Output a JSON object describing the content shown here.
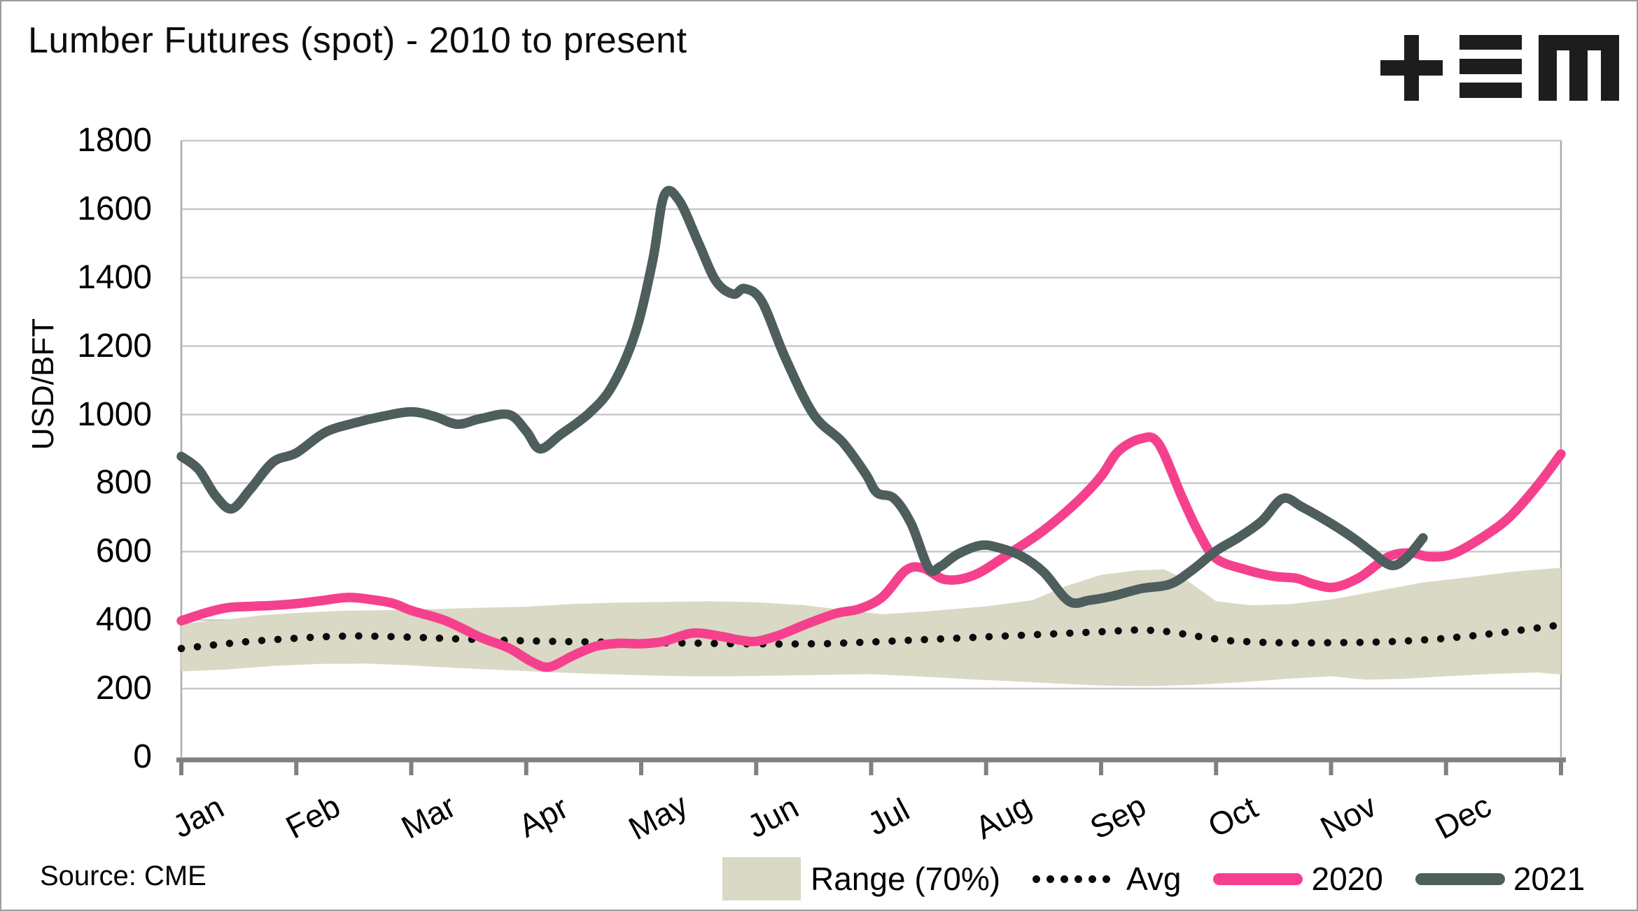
{
  "title": "Lumber Futures (spot) - 2010 to present",
  "source": "Source: CME",
  "logo_name": "plus-triple-bar-m-logo",
  "colors": {
    "pink": "#f5418d",
    "slate": "#4d5e5c",
    "band": "#d9d9c5",
    "avg_dots": "#0c0c0c",
    "grid": "#c9c9c9",
    "plot_border": "#ababab",
    "axis": "#808080",
    "logo": "#1d1d1b"
  },
  "legend": {
    "range_label": "Range (70%)",
    "avg_label": "Avg",
    "s2020_label": "2020",
    "s2021_label": "2021"
  },
  "chart_data": {
    "type": "line",
    "title": "Lumber Futures (spot) - 2010 to present",
    "xlabel": "",
    "ylabel": "USD/BFT",
    "ylim": [
      0,
      1800
    ],
    "y_ticks": [
      0,
      200,
      400,
      600,
      800,
      1000,
      1200,
      1400,
      1600,
      1800
    ],
    "months": [
      "Jan",
      "Feb",
      "Mar",
      "Apr",
      "May",
      "Jun",
      "Jul",
      "Aug",
      "Sep",
      "Oct",
      "Nov",
      "Dec"
    ],
    "grid": "horizontal-only",
    "legend_position": "bottom-right",
    "x_unit": "month index 0-12 (fraction of year)",
    "series": [
      {
        "name": "Range (70%)",
        "type": "band",
        "upper": [
          [
            0,
            390
          ],
          [
            0.35,
            400
          ],
          [
            0.7,
            414
          ],
          [
            1,
            421
          ],
          [
            1.4,
            427
          ],
          [
            1.8,
            429
          ],
          [
            2.2,
            432
          ],
          [
            2.6,
            436
          ],
          [
            3,
            439
          ],
          [
            3.4,
            447
          ],
          [
            3.8,
            451
          ],
          [
            4.2,
            453
          ],
          [
            4.6,
            455
          ],
          [
            5,
            452
          ],
          [
            5.4,
            444
          ],
          [
            5.8,
            428
          ],
          [
            6.1,
            417
          ],
          [
            6.5,
            426
          ],
          [
            7,
            440
          ],
          [
            7.4,
            458
          ],
          [
            7.7,
            500
          ],
          [
            8,
            532
          ],
          [
            8.3,
            545
          ],
          [
            8.55,
            548
          ],
          [
            8.75,
            515
          ],
          [
            9,
            455
          ],
          [
            9.3,
            443
          ],
          [
            9.65,
            447
          ],
          [
            10,
            460
          ],
          [
            10.4,
            485
          ],
          [
            10.8,
            510
          ],
          [
            11.2,
            525
          ],
          [
            11.6,
            542
          ],
          [
            12,
            553
          ]
        ],
        "lower": [
          [
            0,
            250
          ],
          [
            0.4,
            256
          ],
          [
            0.8,
            266
          ],
          [
            1.2,
            272
          ],
          [
            1.6,
            273
          ],
          [
            2,
            268
          ],
          [
            2.4,
            260
          ],
          [
            2.8,
            254
          ],
          [
            3.2,
            248
          ],
          [
            3.6,
            243
          ],
          [
            4,
            239
          ],
          [
            4.4,
            236
          ],
          [
            4.8,
            236
          ],
          [
            5.2,
            238
          ],
          [
            5.6,
            240
          ],
          [
            6,
            242
          ],
          [
            6.4,
            236
          ],
          [
            6.8,
            228
          ],
          [
            7.2,
            222
          ],
          [
            7.6,
            215
          ],
          [
            8,
            209
          ],
          [
            8.4,
            207
          ],
          [
            8.8,
            211
          ],
          [
            9.2,
            218
          ],
          [
            9.6,
            228
          ],
          [
            10,
            236
          ],
          [
            10.3,
            226
          ],
          [
            10.6,
            228
          ],
          [
            11,
            236
          ],
          [
            11.4,
            243
          ],
          [
            11.8,
            247
          ],
          [
            12,
            241
          ]
        ]
      },
      {
        "name": "Avg",
        "type": "dotted-line",
        "points": [
          [
            0,
            317
          ],
          [
            0.3,
            328
          ],
          [
            0.6,
            338
          ],
          [
            0.9,
            345
          ],
          [
            1.2,
            351
          ],
          [
            1.5,
            354
          ],
          [
            1.8,
            352
          ],
          [
            2.1,
            349
          ],
          [
            2.4,
            345
          ],
          [
            2.8,
            341
          ],
          [
            3.2,
            338
          ],
          [
            3.6,
            336
          ],
          [
            4,
            334
          ],
          [
            4.4,
            333
          ],
          [
            4.8,
            331
          ],
          [
            5.2,
            330
          ],
          [
            5.6,
            331
          ],
          [
            6,
            336
          ],
          [
            6.4,
            342
          ],
          [
            6.8,
            348
          ],
          [
            7.2,
            354
          ],
          [
            7.6,
            360
          ],
          [
            8,
            366
          ],
          [
            8.35,
            372
          ],
          [
            8.6,
            366
          ],
          [
            8.85,
            352
          ],
          [
            9.1,
            340
          ],
          [
            9.4,
            335
          ],
          [
            9.7,
            333
          ],
          [
            10,
            334
          ],
          [
            10.3,
            335
          ],
          [
            10.6,
            338
          ],
          [
            10.9,
            344
          ],
          [
            11.2,
            353
          ],
          [
            11.5,
            364
          ],
          [
            11.75,
            375
          ],
          [
            12,
            386
          ]
        ]
      },
      {
        "name": "2020",
        "type": "line",
        "points": [
          [
            0,
            398
          ],
          [
            0.2,
            420
          ],
          [
            0.4,
            436
          ],
          [
            0.6,
            440
          ],
          [
            0.8,
            443
          ],
          [
            1,
            448
          ],
          [
            1.2,
            456
          ],
          [
            1.45,
            466
          ],
          [
            1.65,
            460
          ],
          [
            1.85,
            448
          ],
          [
            2,
            428
          ],
          [
            2.3,
            398
          ],
          [
            2.6,
            350
          ],
          [
            2.85,
            318
          ],
          [
            3.05,
            278
          ],
          [
            3.2,
            263
          ],
          [
            3.4,
            295
          ],
          [
            3.6,
            323
          ],
          [
            3.8,
            332
          ],
          [
            4,
            331
          ],
          [
            4.2,
            338
          ],
          [
            4.45,
            362
          ],
          [
            4.7,
            352
          ],
          [
            4.85,
            342
          ],
          [
            5,
            338
          ],
          [
            5.2,
            356
          ],
          [
            5.45,
            390
          ],
          [
            5.7,
            420
          ],
          [
            5.9,
            433
          ],
          [
            6.1,
            468
          ],
          [
            6.3,
            545
          ],
          [
            6.45,
            552
          ],
          [
            6.65,
            518
          ],
          [
            6.9,
            532
          ],
          [
            7.2,
            594
          ],
          [
            7.5,
            662
          ],
          [
            7.8,
            748
          ],
          [
            8,
            820
          ],
          [
            8.15,
            893
          ],
          [
            8.35,
            930
          ],
          [
            8.5,
            915
          ],
          [
            8.7,
            762
          ],
          [
            8.85,
            655
          ],
          [
            9,
            580
          ],
          [
            9.25,
            548
          ],
          [
            9.5,
            528
          ],
          [
            9.7,
            522
          ],
          [
            9.85,
            505
          ],
          [
            10.03,
            496
          ],
          [
            10.25,
            525
          ],
          [
            10.5,
            585
          ],
          [
            10.7,
            596
          ],
          [
            10.85,
            585
          ],
          [
            11.05,
            592
          ],
          [
            11.3,
            638
          ],
          [
            11.55,
            700
          ],
          [
            11.8,
            795
          ],
          [
            12,
            885
          ]
        ]
      },
      {
        "name": "2021",
        "type": "line",
        "points": [
          [
            0,
            878
          ],
          [
            0.15,
            840
          ],
          [
            0.3,
            762
          ],
          [
            0.44,
            725
          ],
          [
            0.6,
            782
          ],
          [
            0.8,
            862
          ],
          [
            1,
            888
          ],
          [
            1.25,
            948
          ],
          [
            1.5,
            975
          ],
          [
            1.75,
            995
          ],
          [
            2,
            1008
          ],
          [
            2.2,
            995
          ],
          [
            2.4,
            972
          ],
          [
            2.6,
            988
          ],
          [
            2.85,
            1000
          ],
          [
            3,
            952
          ],
          [
            3.12,
            900
          ],
          [
            3.3,
            942
          ],
          [
            3.55,
            1005
          ],
          [
            3.75,
            1085
          ],
          [
            3.95,
            1240
          ],
          [
            4.1,
            1450
          ],
          [
            4.2,
            1640
          ],
          [
            4.33,
            1625
          ],
          [
            4.5,
            1500
          ],
          [
            4.65,
            1390
          ],
          [
            4.8,
            1352
          ],
          [
            4.9,
            1368
          ],
          [
            5.05,
            1330
          ],
          [
            5.25,
            1168
          ],
          [
            5.5,
            1000
          ],
          [
            5.75,
            920
          ],
          [
            5.95,
            828
          ],
          [
            6.05,
            772
          ],
          [
            6.2,
            755
          ],
          [
            6.35,
            680
          ],
          [
            6.5,
            552
          ],
          [
            6.6,
            556
          ],
          [
            6.75,
            592
          ],
          [
            6.95,
            618
          ],
          [
            7.1,
            612
          ],
          [
            7.3,
            588
          ],
          [
            7.5,
            540
          ],
          [
            7.72,
            455
          ],
          [
            7.9,
            458
          ],
          [
            8.1,
            470
          ],
          [
            8.35,
            492
          ],
          [
            8.6,
            505
          ],
          [
            8.8,
            548
          ],
          [
            9,
            602
          ],
          [
            9.2,
            642
          ],
          [
            9.4,
            690
          ],
          [
            9.58,
            755
          ],
          [
            9.75,
            730
          ],
          [
            10,
            682
          ],
          [
            10.2,
            638
          ],
          [
            10.35,
            600
          ],
          [
            10.52,
            560
          ],
          [
            10.65,
            580
          ],
          [
            10.8,
            640
          ]
        ]
      }
    ]
  }
}
